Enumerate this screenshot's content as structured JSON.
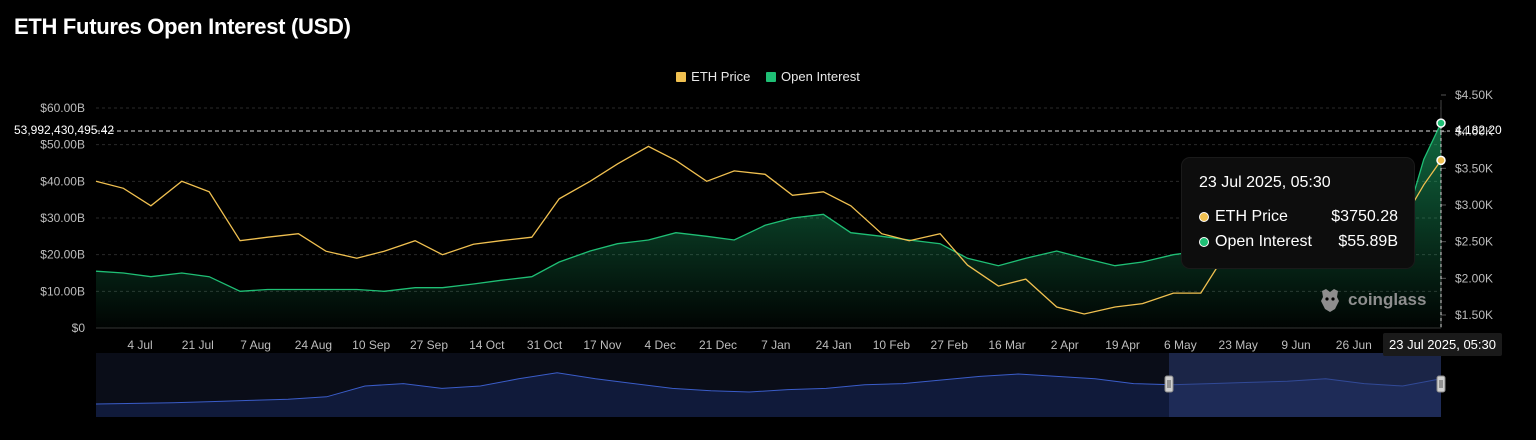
{
  "page": {
    "title": "ETH Futures Open Interest (USD)"
  },
  "legend": [
    {
      "label": "ETH Price",
      "color": "#f0c050"
    },
    {
      "label": "Open Interest",
      "color": "#1fbf75"
    }
  ],
  "tooltip": {
    "title": "23 Jul 2025, 05:30",
    "rows": [
      {
        "label": "ETH Price",
        "value": "$3750.28"
      },
      {
        "label": "Open Interest",
        "value": "$55.89B"
      }
    ]
  },
  "crosshair": {
    "left_value": "53,992,430,495.42",
    "right_value": "4,182.20",
    "x_label": "23 Jul 2025, 05:30"
  },
  "watermark": {
    "text": "coinglass",
    "icon": "coinglass-logo-icon"
  },
  "colors": {
    "price": "#f0c050",
    "oi": "#1fbf75",
    "navigator": "#2a3a70"
  },
  "chart_data": {
    "type": "line",
    "title": "ETH Futures Open Interest (USD)",
    "x_ticks": [
      "4 Jul",
      "21 Jul",
      "7 Aug",
      "24 Aug",
      "10 Sep",
      "27 Sep",
      "14 Oct",
      "31 Oct",
      "17 Nov",
      "4 Dec",
      "21 Dec",
      "7 Jan",
      "24 Jan",
      "10 Feb",
      "27 Feb",
      "16 Mar",
      "2 Apr",
      "19 Apr",
      "6 May",
      "23 May",
      "9 Jun",
      "26 Jun"
    ],
    "y_left": {
      "ticks": [
        "$0",
        "$10.00B",
        "$20.00B",
        "$30.00B",
        "$40.00B",
        "$50.00B",
        "$60.00B"
      ],
      "range": [
        0,
        60
      ]
    },
    "y_right": {
      "ticks": [
        "$1.50K",
        "$2.00K",
        "$2.50K",
        "$3.00K",
        "$3.50K",
        "$4.00K",
        "$4.50K"
      ],
      "range": [
        1350,
        4500
      ]
    },
    "dates": [
      "2024-06-26",
      "2024-07-04",
      "2024-07-12",
      "2024-07-21",
      "2024-07-29",
      "2024-08-07",
      "2024-08-15",
      "2024-08-24",
      "2024-09-01",
      "2024-09-10",
      "2024-09-18",
      "2024-09-27",
      "2024-10-05",
      "2024-10-14",
      "2024-10-22",
      "2024-10-31",
      "2024-11-08",
      "2024-11-17",
      "2024-11-25",
      "2024-12-04",
      "2024-12-12",
      "2024-12-21",
      "2024-12-29",
      "2025-01-07",
      "2025-01-15",
      "2025-01-24",
      "2025-02-01",
      "2025-02-10",
      "2025-02-18",
      "2025-02-27",
      "2025-03-07",
      "2025-03-16",
      "2025-03-24",
      "2025-04-02",
      "2025-04-10",
      "2025-04-19",
      "2025-04-27",
      "2025-05-06",
      "2025-05-14",
      "2025-05-23",
      "2025-05-31",
      "2025-06-09",
      "2025-06-17",
      "2025-06-26",
      "2025-07-04",
      "2025-07-12",
      "2025-07-18",
      "2025-07-23"
    ],
    "series": [
      {
        "name": "ETH Price",
        "axis": "right",
        "values": [
          3450,
          3350,
          3100,
          3450,
          3300,
          2600,
          2650,
          2700,
          2450,
          2350,
          2450,
          2600,
          2400,
          2550,
          2600,
          2650,
          3200,
          3450,
          3700,
          3950,
          3750,
          3450,
          3600,
          3550,
          3250,
          3300,
          3100,
          2700,
          2600,
          2700,
          2250,
          1950,
          2050,
          1650,
          1550,
          1650,
          1700,
          1850,
          1850,
          2550,
          2600,
          2600,
          2450,
          2450,
          2600,
          2900,
          3400,
          3750.28
        ]
      },
      {
        "name": "Open Interest",
        "axis": "left",
        "values": [
          15.5,
          15,
          14,
          15,
          14,
          10,
          10.5,
          10.5,
          10.5,
          10.5,
          10,
          11,
          11,
          12,
          13,
          14,
          18,
          21,
          23,
          24,
          26,
          25,
          24,
          28,
          30,
          31,
          26,
          25,
          24,
          23,
          19,
          17,
          19,
          21,
          19,
          17,
          18,
          20,
          21,
          25,
          25,
          24,
          22,
          22,
          23,
          27,
          46,
          55.89
        ]
      }
    ]
  },
  "navigator": {
    "values": [
      5,
      5.5,
      6,
      7,
      8,
      9,
      11,
      20,
      22,
      18,
      20,
      26,
      31,
      26,
      22,
      18,
      16,
      15,
      17,
      18,
      21,
      22,
      25,
      28,
      30,
      28,
      26,
      22,
      21,
      22,
      23,
      24,
      26,
      22,
      20,
      26
    ]
  }
}
